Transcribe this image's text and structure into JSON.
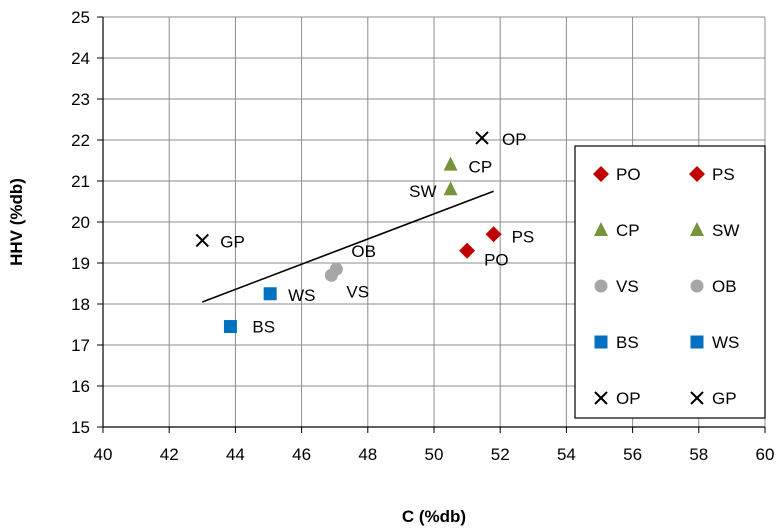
{
  "chart_data": {
    "type": "scatter",
    "xlabel": "C (%db)",
    "ylabel": "HHV (%db)",
    "xlim": [
      40,
      60
    ],
    "ylim": [
      15,
      25
    ],
    "x_ticks": [
      "40",
      "42",
      "44",
      "46",
      "48",
      "50",
      "52",
      "54",
      "56",
      "58",
      "60"
    ],
    "y_ticks": [
      "15",
      "16",
      "17",
      "18",
      "19",
      "20",
      "21",
      "22",
      "23",
      "24",
      "25"
    ],
    "grid": true,
    "legend_position": "right",
    "series": [
      {
        "name": "PO",
        "marker": "diamond",
        "color": "#C00000",
        "points": [
          {
            "x": 51.0,
            "y": 19.3,
            "label": "PO"
          }
        ]
      },
      {
        "name": "PS",
        "marker": "diamond",
        "color": "#C00000",
        "points": [
          {
            "x": 51.8,
            "y": 19.7,
            "label": "PS"
          }
        ]
      },
      {
        "name": "CP",
        "marker": "triangle",
        "color": "#77933C",
        "points": [
          {
            "x": 50.5,
            "y": 21.4,
            "label": "CP"
          }
        ]
      },
      {
        "name": "SW",
        "marker": "triangle",
        "color": "#77933C",
        "points": [
          {
            "x": 50.5,
            "y": 20.8,
            "label": "SW"
          }
        ]
      },
      {
        "name": "VS",
        "marker": "circle",
        "color": "#A6A6A6",
        "points": [
          {
            "x": 46.9,
            "y": 18.7,
            "label": "VS"
          }
        ]
      },
      {
        "name": "OB",
        "marker": "circle",
        "color": "#A6A6A6",
        "points": [
          {
            "x": 47.05,
            "y": 18.85,
            "label": "OB"
          }
        ]
      },
      {
        "name": "BS",
        "marker": "square",
        "color": "#0070C0",
        "points": [
          {
            "x": 43.85,
            "y": 17.45,
            "label": "BS"
          }
        ]
      },
      {
        "name": "WS",
        "marker": "square",
        "color": "#0070C0",
        "points": [
          {
            "x": 45.05,
            "y": 18.25,
            "label": "WS"
          }
        ]
      },
      {
        "name": "OP",
        "marker": "x",
        "color": "#000000",
        "points": [
          {
            "x": 51.45,
            "y": 22.05,
            "label": "OP"
          }
        ]
      },
      {
        "name": "GP",
        "marker": "x",
        "color": "#000000",
        "points": [
          {
            "x": 43.0,
            "y": 19.55,
            "label": "GP"
          }
        ]
      }
    ],
    "trendline": {
      "x": [
        43.0,
        51.8
      ],
      "y": [
        18.05,
        20.75
      ],
      "color": "#000000"
    }
  }
}
